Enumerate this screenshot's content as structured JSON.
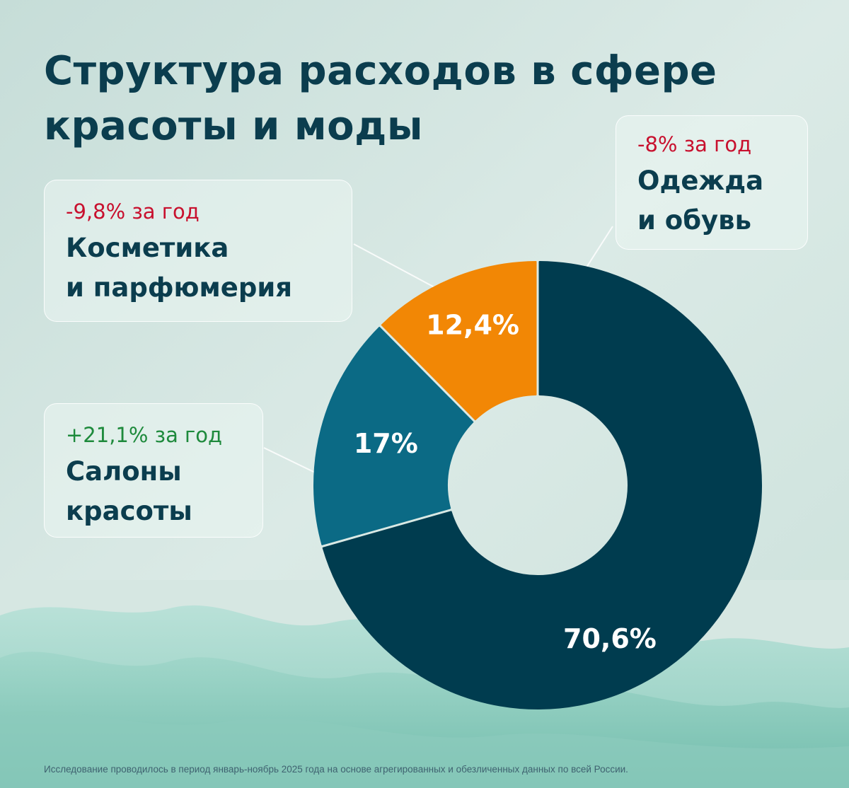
{
  "colors": {
    "title": "#0b3d4e",
    "clothes": "#003c4f",
    "salons": "#0b6a85",
    "cosmetics": "#f28705",
    "negative": "#c8102e",
    "positive": "#1e8a3c"
  },
  "title": "Структура расходов в сфере красоты и моды",
  "footnote": "Исследование проводилось в период январь-ноябрь 2025 года на основе агрегированных и обезличенных данных по всей России.",
  "callouts": {
    "clothes": {
      "change": "-8% за год",
      "name_line1": "Одежда",
      "name_line2": "и обувь"
    },
    "cosmetics": {
      "change": "-9,8% за год",
      "name_line1": "Косметика",
      "name_line2": "и парфюмерия"
    },
    "salons": {
      "change": "+21,1% за год",
      "name_line1": "Салоны",
      "name_line2": "красоты"
    }
  },
  "chart_data": {
    "type": "pie",
    "donut": true,
    "categories": [
      "Одежда и обувь",
      "Салоны красоты",
      "Косметика и парфюмерия"
    ],
    "values": [
      70.6,
      17,
      12.4
    ],
    "labels": [
      "70,6%",
      "17%",
      "12,4%"
    ],
    "changes": [
      "-8% за год",
      "+21,1% за год",
      "-9,8% за год"
    ],
    "colors": [
      "#003c4f",
      "#0b6a85",
      "#f28705"
    ]
  }
}
